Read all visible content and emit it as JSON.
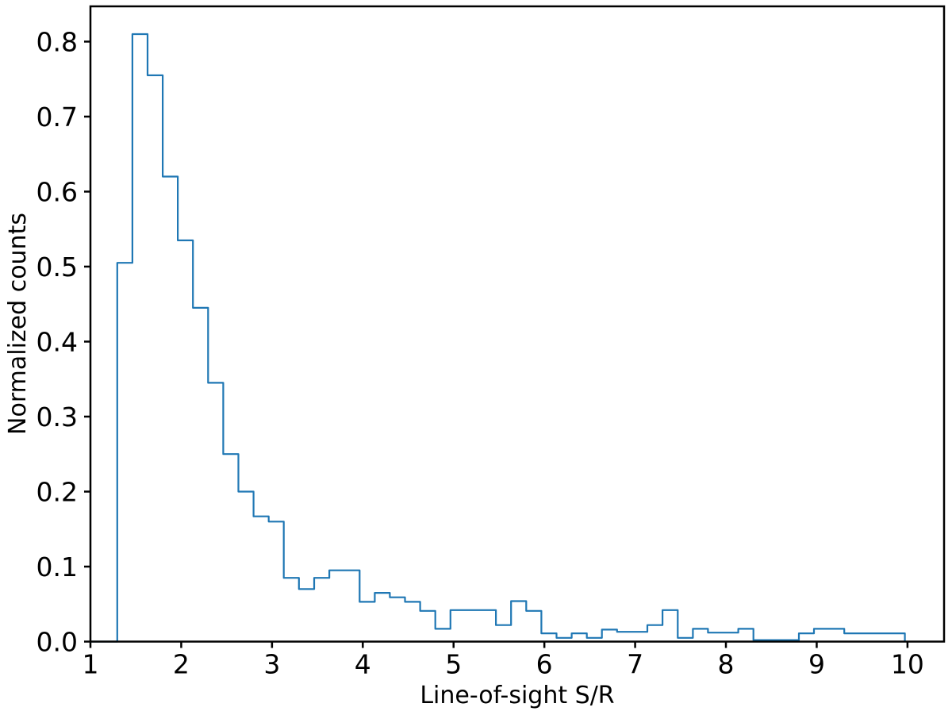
{
  "figure": {
    "background": "#ffffff",
    "text_color": "#000000",
    "spine_color": "#000000"
  },
  "chart_data": {
    "type": "bar",
    "style": "step-outline-histogram",
    "title": "",
    "xlabel": "Line-of-sight S/R",
    "ylabel": "Normalized counts",
    "xlim": [
      1.0,
      10.403
    ],
    "ylim": [
      0,
      0.847
    ],
    "x_ticks": [
      1,
      2,
      3,
      4,
      5,
      6,
      7,
      8,
      9,
      10
    ],
    "x_tick_labels": [
      "1",
      "2",
      "3",
      "4",
      "5",
      "6",
      "7",
      "8",
      "9",
      "10"
    ],
    "y_ticks": [
      0.0,
      0.1,
      0.2,
      0.3,
      0.4,
      0.5,
      0.6,
      0.7,
      0.8
    ],
    "y_tick_labels": [
      "0.0",
      "0.1",
      "0.2",
      "0.3",
      "0.4",
      "0.5",
      "0.6",
      "0.7",
      "0.8"
    ],
    "grid": false,
    "legend": null,
    "line_color": "#1f77b4",
    "line_width": 2.2,
    "baseline_start_x": 1.0,
    "bin_edges": [
      1.295,
      1.462,
      1.629,
      1.796,
      1.962,
      2.129,
      2.296,
      2.463,
      2.63,
      2.797,
      2.964,
      3.13,
      3.297,
      3.464,
      3.631,
      3.798,
      3.965,
      4.132,
      4.298,
      4.465,
      4.632,
      4.799,
      4.966,
      5.133,
      5.3,
      5.466,
      5.633,
      5.8,
      5.967,
      6.134,
      6.301,
      6.468,
      6.634,
      6.801,
      6.968,
      7.135,
      7.302,
      7.469,
      7.636,
      7.802,
      7.969,
      8.136,
      8.303,
      8.47,
      8.637,
      8.804,
      8.97,
      9.137,
      9.304,
      9.471,
      9.638,
      9.805,
      9.971
    ],
    "heights": [
      0.505,
      0.81,
      0.755,
      0.62,
      0.535,
      0.445,
      0.345,
      0.25,
      0.2,
      0.167,
      0.16,
      0.085,
      0.07,
      0.085,
      0.095,
      0.095,
      0.053,
      0.065,
      0.059,
      0.053,
      0.041,
      0.017,
      0.042,
      0.042,
      0.042,
      0.022,
      0.054,
      0.041,
      0.011,
      0.005,
      0.011,
      0.005,
      0.016,
      0.013,
      0.013,
      0.022,
      0.042,
      0.005,
      0.017,
      0.012,
      0.012,
      0.017,
      0.002,
      0.002,
      0.002,
      0.011,
      0.017,
      0.017,
      0.011,
      0.011,
      0.011,
      0.011
    ]
  }
}
